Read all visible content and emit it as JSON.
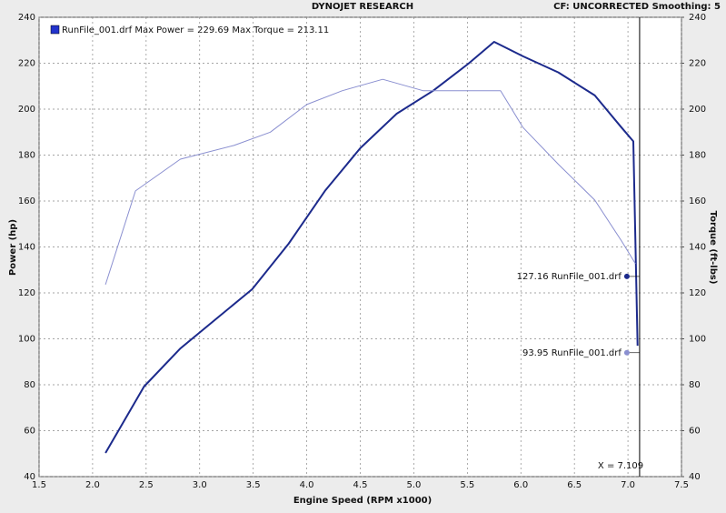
{
  "chart_data": {
    "type": "line",
    "title": "DYNOJET RESEARCH",
    "subtitle": "CF: UNCORRECTED  Smoothing: 5",
    "legend_text": "RunFile_001.drf Max Power = 229.69 Max Torque = 213.11",
    "xlabel": "Engine Speed (RPM x1000)",
    "ylabel": "Power (hp)",
    "y2label": "Torque (ft-lbs)",
    "xlim": [
      1.5,
      7.5
    ],
    "xticks": [
      1.5,
      {
        "value": 2,
        "label": "2.0"
      },
      2.5,
      {
        "value": 3,
        "label": "3.0"
      },
      3.5,
      {
        "value": 4,
        "label": "4.0"
      },
      4.5,
      {
        "value": 5,
        "label": "5.0"
      },
      5.5,
      {
        "value": 6,
        "label": "6.0"
      },
      6.5,
      {
        "value": 7,
        "label": "7.0"
      },
      7.5
    ],
    "ylim": [
      40,
      240
    ],
    "yticks": [
      40,
      60,
      80,
      100,
      120,
      140,
      160,
      180,
      200,
      220,
      240
    ],
    "y2lim": [
      40,
      240
    ],
    "y2ticks": [
      40,
      60,
      80,
      100,
      120,
      140,
      160,
      180,
      200,
      220,
      240
    ],
    "grid": true,
    "series": [
      {
        "color": "#1c2a8c",
        "x": [
          2.12,
          2.48,
          2.82,
          3.16,
          3.49,
          3.83,
          4.17,
          4.5,
          4.84,
          5.18,
          5.51,
          5.75,
          6.02,
          6.35,
          6.69,
          6.94,
          7.05,
          7.09
        ],
        "values": [
          50.3,
          79.2,
          95.8,
          108.9,
          121.6,
          141.4,
          164.4,
          183,
          198,
          208,
          219.8,
          229.3,
          223,
          216,
          206,
          192,
          186,
          97
        ]
      },
      {
        "color": "#8a8fd0",
        "axis": "y2",
        "x": [
          2.12,
          2.4,
          2.82,
          3.32,
          3.66,
          4.0,
          4.33,
          4.71,
          5.09,
          5.51,
          5.81,
          6.02,
          6.35,
          6.69,
          6.94,
          7.07
        ],
        "values": [
          123.6,
          164.4,
          178.2,
          184.2,
          190,
          202,
          208,
          213,
          208,
          208,
          208,
          192,
          176,
          160.4,
          142.6,
          132.7
        ]
      }
    ],
    "readouts": [
      {
        "value": 127.16,
        "label": "127.16 RunFile_001.drf",
        "color": "#1c2a8c"
      },
      {
        "value": 93.95,
        "label": "93.95 RunFile_001.drf",
        "color": "#8a8fd0"
      }
    ],
    "cursor": {
      "x": 7.109,
      "label": "X = 7.109"
    }
  }
}
